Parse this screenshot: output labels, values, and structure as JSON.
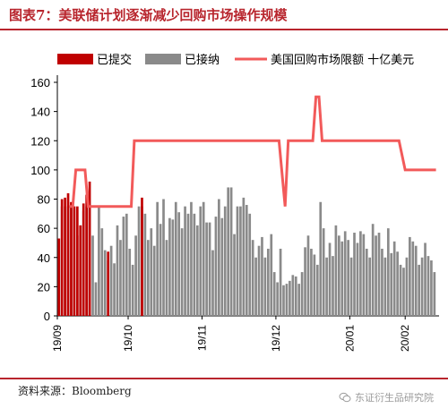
{
  "figure": {
    "title": "图表7：美联储计划逐渐减少回购市场操作规模",
    "source": "资料来源：Bloomberg",
    "watermark": "东证衍生品研究院",
    "watermark_icon": "wechat-icon"
  },
  "chart_data": {
    "type": "bar",
    "xlabel": "",
    "ylabel": "",
    "ylim": [
      0,
      160
    ],
    "yticks": [
      0,
      20,
      40,
      60,
      80,
      100,
      120,
      140,
      160
    ],
    "grid": false,
    "legend_position": "top",
    "colors": {
      "submitted": "#c00000",
      "accepted": "#8a8a8a",
      "limit": "#f25a5a",
      "title": "#b8252d"
    },
    "x_tick_labels": [
      "19/09",
      "19/10",
      "19/11",
      "19/12",
      "20/01",
      "20/02"
    ],
    "series": [
      {
        "name": "已提交",
        "type": "bar",
        "values": [
          [
            0,
            53
          ],
          [
            1,
            80
          ],
          [
            2,
            81
          ],
          [
            3,
            84
          ],
          [
            4,
            78
          ],
          [
            5,
            75
          ],
          [
            6,
            75
          ],
          [
            7,
            62
          ],
          [
            8,
            77
          ],
          [
            9,
            83
          ],
          [
            10,
            92
          ],
          [
            16,
            44
          ],
          [
            27,
            81
          ]
        ]
      },
      {
        "name": "已接纳",
        "type": "bar",
        "values": [
          [
            0,
            53
          ],
          [
            1,
            75
          ],
          [
            2,
            75
          ],
          [
            3,
            75
          ],
          [
            4,
            75
          ],
          [
            5,
            75
          ],
          [
            6,
            55
          ],
          [
            7,
            62
          ],
          [
            8,
            72
          ],
          [
            9,
            75
          ],
          [
            10,
            76
          ],
          [
            11,
            55
          ],
          [
            12,
            23
          ],
          [
            13,
            75
          ],
          [
            14,
            60
          ],
          [
            15,
            45
          ],
          [
            16,
            38
          ],
          [
            17,
            48
          ],
          [
            18,
            36
          ],
          [
            19,
            62
          ],
          [
            20,
            52
          ],
          [
            21,
            68
          ],
          [
            22,
            70
          ],
          [
            23,
            46
          ],
          [
            24,
            35
          ],
          [
            25,
            55
          ],
          [
            26,
            75
          ],
          [
            27,
            75
          ],
          [
            28,
            70
          ],
          [
            29,
            52
          ],
          [
            30,
            60
          ],
          [
            31,
            48
          ],
          [
            32,
            78
          ],
          [
            33,
            63
          ],
          [
            34,
            80
          ],
          [
            35,
            52
          ],
          [
            36,
            67
          ],
          [
            37,
            66
          ],
          [
            38,
            78
          ],
          [
            39,
            71
          ],
          [
            40,
            60
          ],
          [
            41,
            75
          ],
          [
            42,
            70
          ],
          [
            43,
            78
          ],
          [
            44,
            70
          ],
          [
            45,
            62
          ],
          [
            46,
            75
          ],
          [
            47,
            78
          ],
          [
            48,
            64
          ],
          [
            49,
            64
          ],
          [
            50,
            45
          ],
          [
            51,
            68
          ],
          [
            52,
            80
          ],
          [
            53,
            67
          ],
          [
            54,
            75
          ],
          [
            55,
            88
          ],
          [
            56,
            88
          ],
          [
            57,
            56
          ],
          [
            58,
            75
          ],
          [
            59,
            75
          ],
          [
            60,
            81
          ],
          [
            61,
            76
          ],
          [
            62,
            70
          ],
          [
            63,
            52
          ],
          [
            64,
            40
          ],
          [
            65,
            48
          ],
          [
            66,
            54
          ],
          [
            67,
            40
          ],
          [
            68,
            46
          ],
          [
            69,
            56
          ],
          [
            70,
            30
          ],
          [
            71,
            23
          ],
          [
            72,
            46
          ],
          [
            73,
            21
          ],
          [
            74,
            22
          ],
          [
            75,
            24
          ],
          [
            76,
            28
          ],
          [
            77,
            27
          ],
          [
            78,
            22
          ],
          [
            79,
            30
          ],
          [
            80,
            47
          ],
          [
            81,
            55
          ],
          [
            82,
            46
          ],
          [
            83,
            42
          ],
          [
            84,
            35
          ],
          [
            85,
            78
          ],
          [
            86,
            60
          ],
          [
            87,
            40
          ],
          [
            88,
            50
          ],
          [
            89,
            41
          ],
          [
            90,
            62
          ],
          [
            91,
            55
          ],
          [
            92,
            51
          ],
          [
            93,
            58
          ],
          [
            94,
            52
          ],
          [
            95,
            40
          ],
          [
            96,
            57
          ],
          [
            97,
            50
          ],
          [
            98,
            58
          ],
          [
            99,
            56
          ],
          [
            100,
            46
          ],
          [
            101,
            40
          ],
          [
            102,
            63
          ],
          [
            103,
            55
          ],
          [
            104,
            57
          ],
          [
            105,
            46
          ],
          [
            106,
            40
          ],
          [
            107,
            60
          ],
          [
            108,
            43
          ],
          [
            109,
            51
          ],
          [
            110,
            44
          ],
          [
            111,
            35
          ],
          [
            112,
            33
          ],
          [
            113,
            40
          ],
          [
            114,
            54
          ],
          [
            115,
            51
          ],
          [
            116,
            48
          ],
          [
            117,
            35
          ],
          [
            118,
            40
          ],
          [
            119,
            50
          ],
          [
            120,
            41
          ],
          [
            121,
            38
          ],
          [
            122,
            30
          ]
        ]
      },
      {
        "name": "美国回购市场限额 十亿美元",
        "type": "line",
        "points": [
          [
            4,
            75
          ],
          [
            5,
            75
          ],
          [
            6,
            100
          ],
          [
            9,
            100
          ],
          [
            10,
            75
          ],
          [
            24,
            75
          ],
          [
            25,
            120
          ],
          [
            70,
            120
          ],
          [
            72,
            120
          ],
          [
            74,
            75
          ],
          [
            75,
            120
          ],
          [
            76,
            120
          ],
          [
            80,
            120
          ],
          [
            83,
            120
          ],
          [
            84,
            150
          ],
          [
            85,
            150
          ],
          [
            86,
            120
          ],
          [
            100,
            120
          ],
          [
            103,
            120
          ],
          [
            111,
            120
          ],
          [
            113,
            100
          ],
          [
            119,
            100
          ],
          [
            123,
            100
          ]
        ]
      }
    ]
  }
}
